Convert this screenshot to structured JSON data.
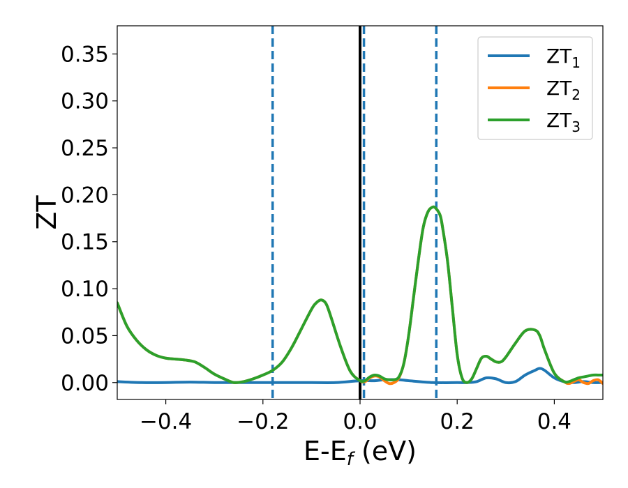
{
  "chart_data": {
    "type": "line",
    "xlabel": "E-E",
    "xlabel_subscript": "f",
    "xlabel_unit": " (eV)",
    "ylabel": "ZT",
    "xlim": [
      -0.5,
      0.5
    ],
    "ylim": [
      -0.018,
      0.38
    ],
    "xticks": [
      -0.4,
      -0.2,
      0.0,
      0.2,
      0.4
    ],
    "xtick_labels": [
      "−0.4",
      "−0.2",
      "0.0",
      "0.2",
      "0.4"
    ],
    "yticks": [
      0.0,
      0.05,
      0.1,
      0.15,
      0.2,
      0.25,
      0.3,
      0.35
    ],
    "ytick_labels": [
      "0.00",
      "0.05",
      "0.10",
      "0.15",
      "0.20",
      "0.25",
      "0.30",
      "0.35"
    ],
    "grid": false,
    "legend_position": "top-right",
    "vertical_lines": [
      {
        "x": -0.18,
        "style": "dashed",
        "color": "#1f77b4"
      },
      {
        "x": 0.0,
        "style": "solid",
        "color": "#000000"
      },
      {
        "x": 0.008,
        "style": "dashed",
        "color": "#1f77b4"
      },
      {
        "x": 0.157,
        "style": "dashed",
        "color": "#1f77b4"
      }
    ],
    "series": [
      {
        "name": "ZT",
        "name_subscript": "1",
        "color": "#1f77b4",
        "x": [
          -0.5,
          -0.45,
          -0.4,
          -0.35,
          -0.3,
          -0.25,
          -0.2,
          -0.15,
          -0.1,
          -0.05,
          0.0,
          0.03,
          0.05,
          0.08,
          0.1,
          0.15,
          0.2,
          0.22,
          0.24,
          0.26,
          0.28,
          0.3,
          0.32,
          0.34,
          0.36,
          0.37,
          0.38,
          0.4,
          0.42,
          0.44,
          0.46,
          0.48,
          0.5
        ],
        "y": [
          0.001,
          0.0,
          0.0,
          0.0005,
          0.0,
          0.0,
          0.0,
          0.0,
          0.0,
          0.0,
          0.002,
          0.002,
          0.003,
          0.003,
          0.002,
          0.0,
          0.0,
          0.0,
          0.001,
          0.005,
          0.004,
          0.0,
          0.001,
          0.008,
          0.013,
          0.015,
          0.013,
          0.005,
          0.001,
          0.0,
          0.001,
          0.0,
          0.0
        ]
      },
      {
        "name": "ZT",
        "name_subscript": "2",
        "color": "#ff7f0e",
        "x": [
          -0.5,
          -0.48,
          -0.46,
          -0.44,
          -0.42,
          -0.4,
          -0.38,
          -0.36,
          -0.34,
          -0.32,
          -0.3,
          -0.28,
          -0.26,
          -0.24,
          -0.22,
          -0.2,
          -0.18,
          -0.16,
          -0.14,
          -0.12,
          -0.1,
          -0.09,
          -0.08,
          -0.07,
          -0.06,
          -0.04,
          -0.02,
          0.0,
          0.01,
          0.02,
          0.03,
          0.04,
          0.05,
          0.06,
          0.07,
          0.08,
          0.09,
          0.1,
          0.11,
          0.12,
          0.13,
          0.14,
          0.15,
          0.157,
          0.165,
          0.17,
          0.18,
          0.19,
          0.2,
          0.21,
          0.22,
          0.23,
          0.24,
          0.25,
          0.26,
          0.27,
          0.28,
          0.29,
          0.3,
          0.32,
          0.34,
          0.36,
          0.37,
          0.38,
          0.4,
          0.42,
          0.43,
          0.44,
          0.45,
          0.46,
          0.47,
          0.48,
          0.49,
          0.5
        ],
        "y": [
          0.085,
          0.06,
          0.045,
          0.035,
          0.029,
          0.026,
          0.025,
          0.024,
          0.022,
          0.016,
          0.009,
          0.004,
          0.0,
          0.001,
          0.004,
          0.008,
          0.013,
          0.022,
          0.038,
          0.058,
          0.078,
          0.085,
          0.088,
          0.084,
          0.07,
          0.038,
          0.012,
          0.002,
          0.001,
          0.005,
          0.007,
          0.006,
          0.002,
          -0.001,
          0.0,
          0.005,
          0.02,
          0.05,
          0.09,
          0.13,
          0.165,
          0.182,
          0.187,
          0.185,
          0.178,
          0.165,
          0.13,
          0.08,
          0.03,
          0.005,
          0.0,
          0.004,
          0.015,
          0.026,
          0.028,
          0.025,
          0.022,
          0.022,
          0.027,
          0.042,
          0.055,
          0.056,
          0.05,
          0.035,
          0.01,
          0.001,
          -0.001,
          0.001,
          0.003,
          0.0,
          -0.001,
          0.002,
          0.003,
          -0.001
        ]
      },
      {
        "name": "ZT",
        "name_subscript": "3",
        "color": "#2ca02c",
        "x": [
          -0.5,
          -0.48,
          -0.46,
          -0.44,
          -0.42,
          -0.4,
          -0.38,
          -0.36,
          -0.34,
          -0.32,
          -0.3,
          -0.28,
          -0.26,
          -0.24,
          -0.22,
          -0.2,
          -0.18,
          -0.16,
          -0.14,
          -0.12,
          -0.1,
          -0.09,
          -0.08,
          -0.07,
          -0.06,
          -0.04,
          -0.02,
          0.0,
          0.01,
          0.02,
          0.03,
          0.04,
          0.05,
          0.06,
          0.07,
          0.08,
          0.09,
          0.1,
          0.11,
          0.12,
          0.13,
          0.14,
          0.15,
          0.157,
          0.165,
          0.17,
          0.18,
          0.19,
          0.2,
          0.21,
          0.22,
          0.23,
          0.24,
          0.25,
          0.26,
          0.27,
          0.28,
          0.29,
          0.3,
          0.32,
          0.34,
          0.36,
          0.37,
          0.38,
          0.4,
          0.42,
          0.43,
          0.44,
          0.45,
          0.46,
          0.47,
          0.48,
          0.49,
          0.5
        ],
        "y": [
          0.085,
          0.06,
          0.045,
          0.035,
          0.029,
          0.026,
          0.025,
          0.024,
          0.022,
          0.016,
          0.009,
          0.004,
          0.0,
          0.001,
          0.004,
          0.008,
          0.013,
          0.022,
          0.038,
          0.058,
          0.078,
          0.085,
          0.088,
          0.084,
          0.07,
          0.038,
          0.012,
          0.002,
          0.002,
          0.006,
          0.008,
          0.007,
          0.004,
          0.003,
          0.003,
          0.006,
          0.02,
          0.05,
          0.09,
          0.13,
          0.165,
          0.182,
          0.187,
          0.185,
          0.178,
          0.165,
          0.13,
          0.08,
          0.03,
          0.005,
          0.0,
          0.004,
          0.015,
          0.026,
          0.028,
          0.025,
          0.022,
          0.022,
          0.027,
          0.042,
          0.055,
          0.056,
          0.05,
          0.035,
          0.01,
          0.001,
          0.001,
          0.003,
          0.005,
          0.006,
          0.007,
          0.008,
          0.008,
          0.008
        ]
      }
    ]
  }
}
